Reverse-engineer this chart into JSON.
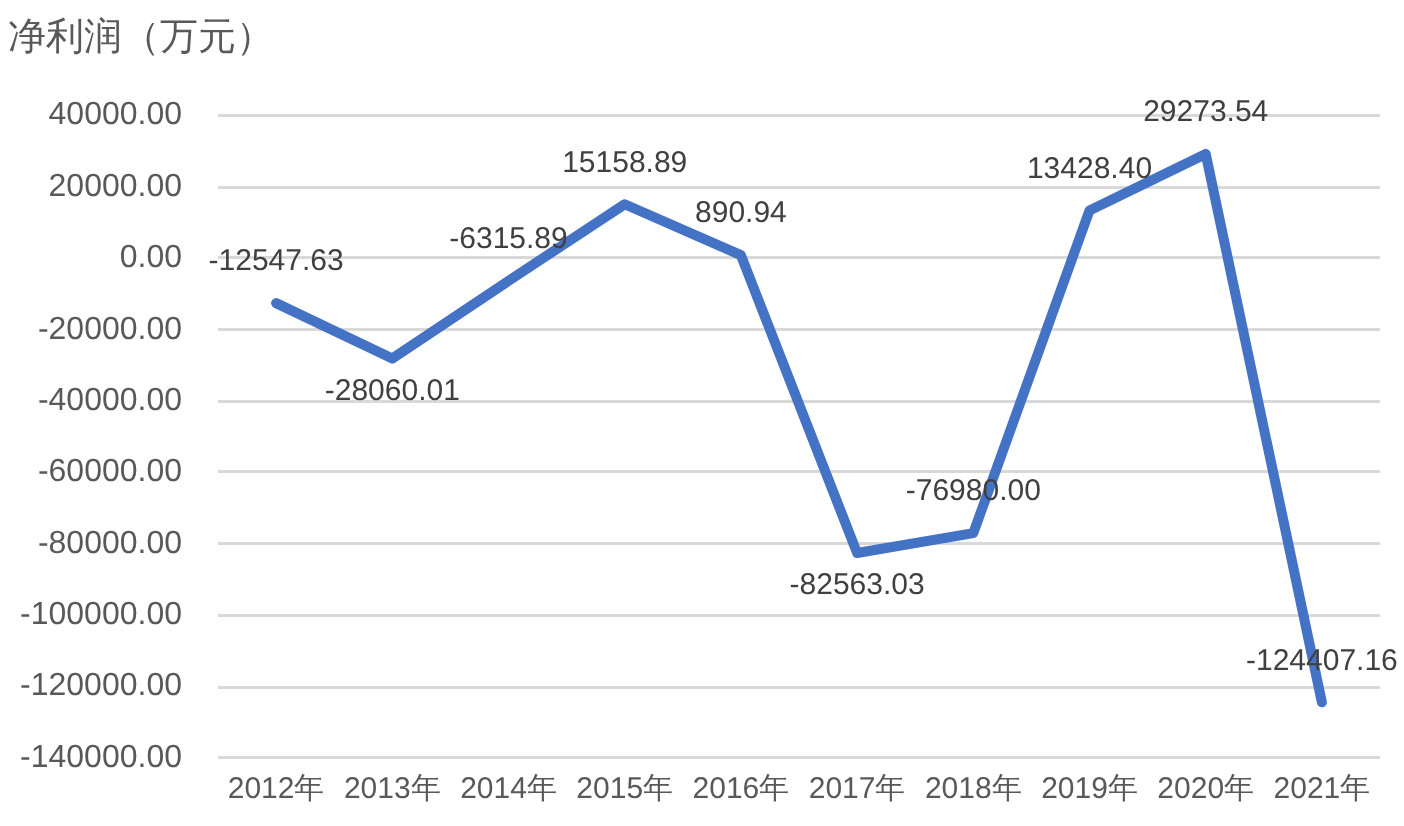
{
  "chart_data": {
    "type": "line",
    "title": "净利润（万元）",
    "categories": [
      "2012年",
      "2013年",
      "2014年",
      "2015年",
      "2016年",
      "2017年",
      "2018年",
      "2019年",
      "2020年",
      "2021年"
    ],
    "series": [
      {
        "color": "#4472c4",
        "values": [
          -12547.63,
          -28060.01,
          -6315.89,
          15158.89,
          890.94,
          -82563.03,
          -76980,
          13428.4,
          29273.54,
          -124407.16
        ],
        "value_labels": [
          "-12547.63",
          "-28060.01",
          "-6315.89",
          "15158.89",
          "890.94",
          "-82563.03",
          "-76980.00",
          "13428.40",
          "29273.54",
          "-124407.16"
        ]
      }
    ],
    "ylim": [
      -140000,
      40000
    ],
    "yticks": [
      {
        "value": 40000,
        "label": "40000.00"
      },
      {
        "value": 20000,
        "label": "20000.00"
      },
      {
        "value": 0,
        "label": "0.00"
      },
      {
        "value": -20000,
        "label": "-20000.00"
      },
      {
        "value": -40000,
        "label": "-40000.00"
      },
      {
        "value": -60000,
        "label": "-60000.00"
      },
      {
        "value": -80000,
        "label": "-80000.00"
      },
      {
        "value": -100000,
        "label": "-100000.00"
      },
      {
        "value": -120000,
        "label": "-120000.00"
      },
      {
        "value": -140000,
        "label": "-140000.00"
      }
    ],
    "grid": "y",
    "marker": "none",
    "line_style": "solid"
  }
}
